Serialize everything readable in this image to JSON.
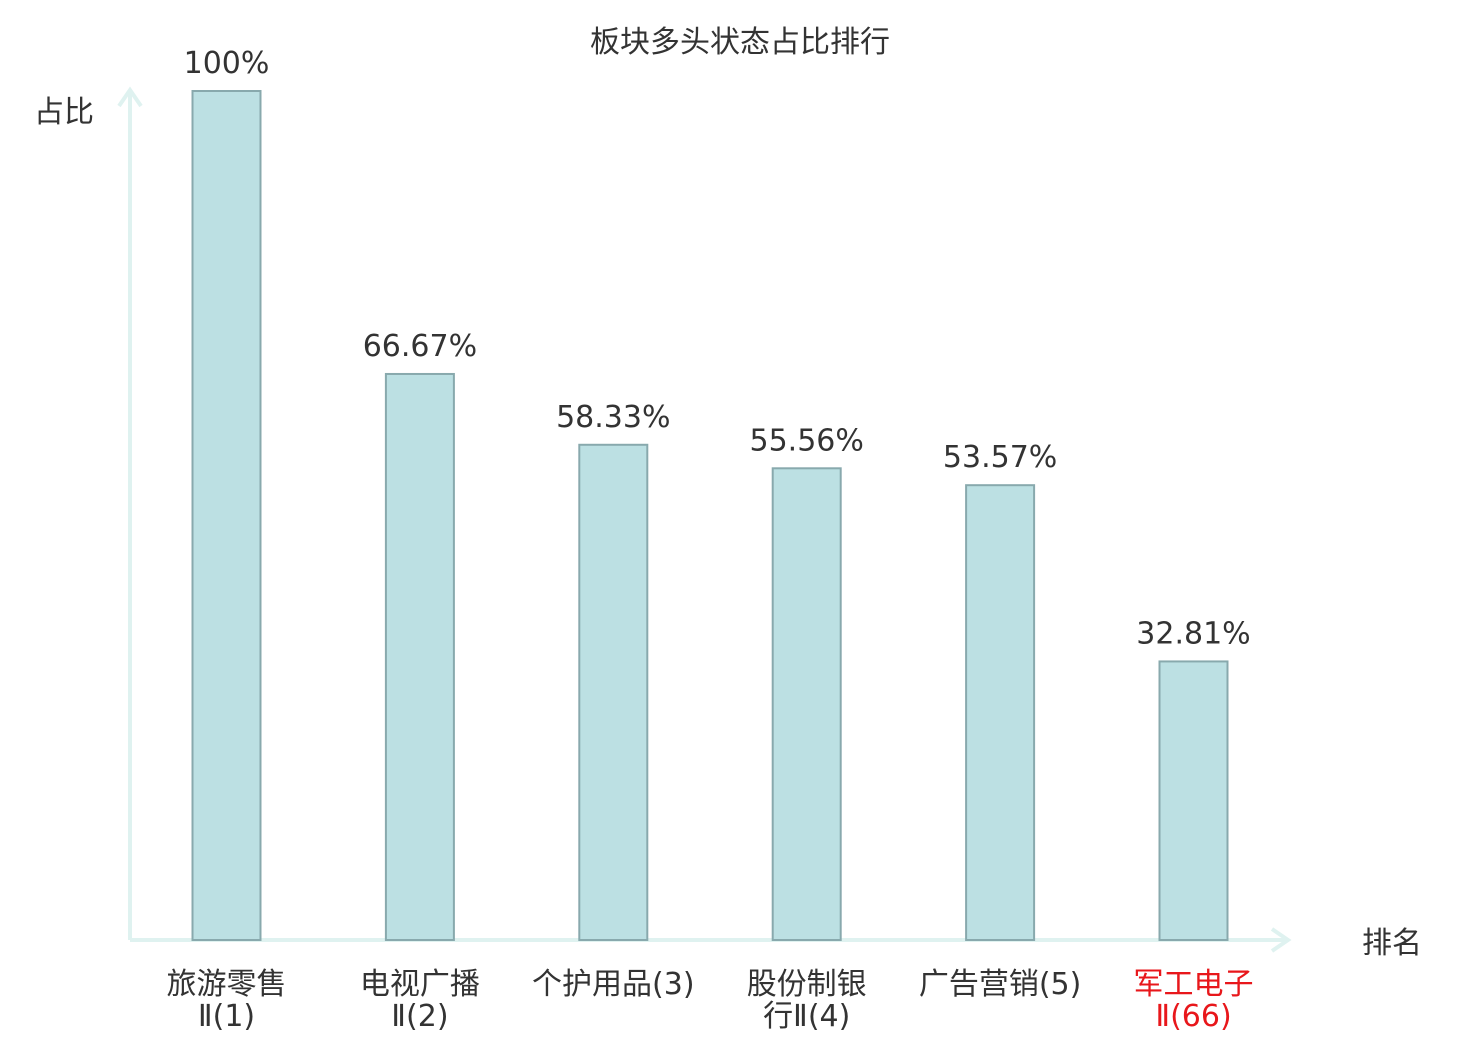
{
  "chart_data": {
    "type": "bar",
    "title": "板块多头状态占比排行",
    "ylabel": "占比",
    "xlabel": "排名",
    "categories": [
      [
        "旅游零售",
        "Ⅱ(1)"
      ],
      [
        "电视广播",
        "Ⅱ(2)"
      ],
      [
        "个护用品(3)"
      ],
      [
        "股份制银",
        "行Ⅱ(4)"
      ],
      [
        "广告营销(5)"
      ],
      [
        "军工电子",
        "Ⅱ(66)"
      ]
    ],
    "values": [
      100,
      66.67,
      58.33,
      55.56,
      53.57,
      32.81
    ],
    "value_labels": [
      "100%",
      "66.67%",
      "58.33%",
      "55.56%",
      "53.57%",
      "32.81%"
    ],
    "highlight_index": 5,
    "ylim": [
      0,
      100
    ],
    "grid": false,
    "colors": {
      "bar_fill": "#bce0e3",
      "bar_stroke": "#88a9ad",
      "axis": "#dff2f0",
      "text": "#333333",
      "highlight_text": "#e8171b"
    }
  }
}
